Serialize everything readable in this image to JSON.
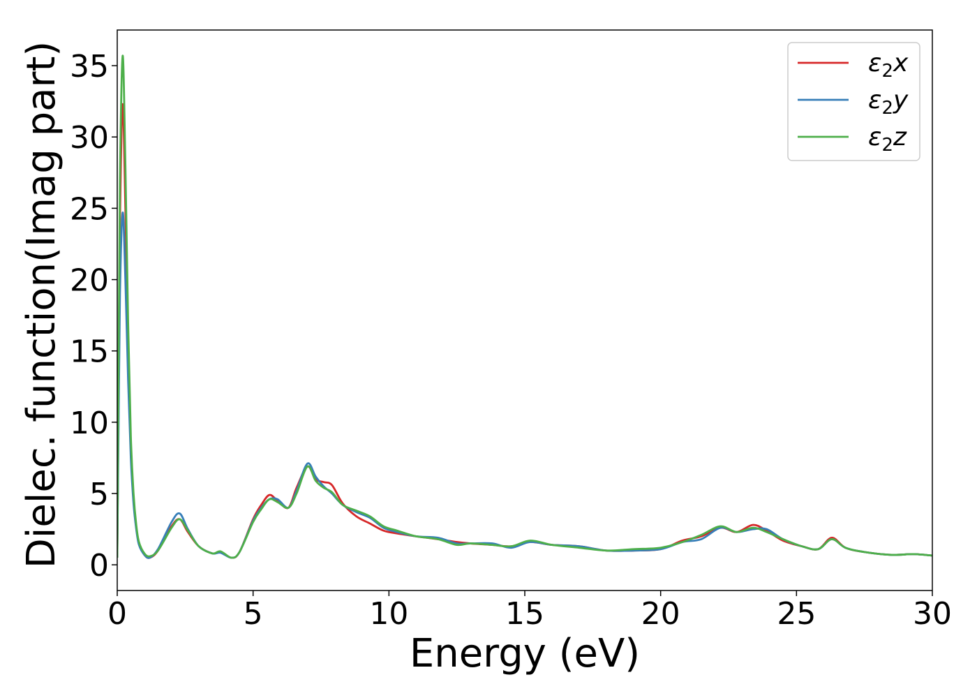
{
  "chart_data": {
    "type": "line",
    "xlabel": "Energy (eV)",
    "ylabel": "Dielec. function(Imag part)",
    "xlim": [
      0,
      30
    ],
    "ylim": [
      -1.8,
      37.5
    ],
    "xticks": [
      0,
      5,
      10,
      15,
      20,
      25,
      30
    ],
    "yticks": [
      0,
      5,
      10,
      15,
      20,
      25,
      30,
      35
    ],
    "grid": false,
    "legend_position": "top-right",
    "series": [
      {
        "name": "ε₂x",
        "legend_main": "ε",
        "legend_sub": "2",
        "legend_suffix": "x",
        "color": "#d62728",
        "x": [
          0,
          0.05,
          0.1,
          0.2,
          0.3,
          0.4,
          0.5,
          0.6,
          0.7,
          0.8,
          1.0,
          1.2,
          1.5,
          2.0,
          2.3,
          2.6,
          3.0,
          3.5,
          3.8,
          4.2,
          4.5,
          5.0,
          5.3,
          5.6,
          5.9,
          6.3,
          6.6,
          7.0,
          7.3,
          7.6,
          7.9,
          8.3,
          8.8,
          9.3,
          9.8,
          10.3,
          11.0,
          11.8,
          12.5,
          13.0,
          13.8,
          14.5,
          15.2,
          16.0,
          17.0,
          18.0,
          19.0,
          20.0,
          20.8,
          21.5,
          22.2,
          22.8,
          23.4,
          23.9,
          24.5,
          25.2,
          25.8,
          26.3,
          26.8,
          27.5,
          28.5,
          29.3,
          30.0
        ],
        "y": [
          0.5,
          12.0,
          24.0,
          32.3,
          25.0,
          15.0,
          8.0,
          4.5,
          2.6,
          1.5,
          0.7,
          0.5,
          1.0,
          2.7,
          3.2,
          2.3,
          1.3,
          0.8,
          0.9,
          0.5,
          0.9,
          3.2,
          4.2,
          4.9,
          4.5,
          4.0,
          5.4,
          6.9,
          6.0,
          5.8,
          5.6,
          4.3,
          3.4,
          2.9,
          2.4,
          2.2,
          2.0,
          1.8,
          1.6,
          1.5,
          1.4,
          1.3,
          1.6,
          1.4,
          1.3,
          1.0,
          1.0,
          1.1,
          1.7,
          2.0,
          2.6,
          2.3,
          2.8,
          2.4,
          1.7,
          1.3,
          1.1,
          1.9,
          1.2,
          0.9,
          0.7,
          0.75,
          0.65
        ]
      },
      {
        "name": "ε₂y",
        "legend_main": "ε",
        "legend_sub": "2",
        "legend_suffix": "y",
        "color": "#377eb8",
        "x": [
          0,
          0.05,
          0.1,
          0.2,
          0.3,
          0.4,
          0.5,
          0.6,
          0.7,
          0.8,
          1.0,
          1.2,
          1.5,
          2.0,
          2.3,
          2.6,
          3.0,
          3.5,
          3.8,
          4.2,
          4.5,
          5.0,
          5.3,
          5.6,
          5.9,
          6.3,
          6.6,
          7.0,
          7.3,
          7.6,
          7.9,
          8.3,
          8.8,
          9.3,
          9.8,
          10.3,
          11.0,
          11.8,
          12.5,
          13.0,
          13.8,
          14.5,
          15.2,
          16.0,
          17.0,
          18.0,
          19.0,
          20.0,
          20.8,
          21.5,
          22.2,
          22.8,
          23.4,
          23.9,
          24.5,
          25.2,
          25.8,
          26.3,
          26.8,
          27.5,
          28.5,
          29.3,
          30.0
        ],
        "y": [
          0.5,
          10.0,
          19.0,
          24.7,
          20.0,
          13.0,
          7.5,
          4.3,
          2.5,
          1.4,
          0.7,
          0.5,
          1.1,
          3.0,
          3.6,
          2.5,
          1.3,
          0.8,
          0.85,
          0.5,
          0.9,
          3.1,
          4.0,
          4.6,
          4.6,
          4.0,
          5.2,
          7.1,
          6.2,
          5.5,
          5.0,
          4.2,
          3.7,
          3.3,
          2.6,
          2.3,
          2.0,
          1.9,
          1.5,
          1.5,
          1.5,
          1.2,
          1.6,
          1.4,
          1.3,
          1.0,
          1.0,
          1.1,
          1.6,
          1.8,
          2.6,
          2.3,
          2.5,
          2.5,
          1.8,
          1.3,
          1.1,
          1.8,
          1.2,
          0.9,
          0.7,
          0.75,
          0.65
        ]
      },
      {
        "name": "ε₂z",
        "legend_main": "ε",
        "legend_sub": "2",
        "legend_suffix": "z",
        "color": "#4daf4a",
        "x": [
          0,
          0.05,
          0.1,
          0.2,
          0.3,
          0.4,
          0.5,
          0.6,
          0.7,
          0.8,
          1.0,
          1.2,
          1.5,
          2.0,
          2.3,
          2.6,
          3.0,
          3.5,
          3.8,
          4.2,
          4.5,
          5.0,
          5.3,
          5.6,
          5.9,
          6.3,
          6.6,
          7.0,
          7.3,
          7.6,
          7.9,
          8.3,
          8.8,
          9.3,
          9.8,
          10.3,
          11.0,
          11.8,
          12.5,
          13.0,
          13.8,
          14.5,
          15.2,
          16.0,
          17.0,
          18.0,
          19.0,
          20.0,
          20.8,
          21.5,
          22.2,
          22.8,
          23.4,
          23.9,
          24.5,
          25.2,
          25.8,
          26.3,
          26.8,
          27.5,
          28.5,
          29.3,
          30.0
        ],
        "y": [
          0.5,
          14.0,
          27.0,
          35.7,
          28.0,
          17.0,
          9.0,
          5.0,
          2.8,
          1.6,
          0.8,
          0.6,
          1.0,
          2.6,
          3.2,
          2.4,
          1.3,
          0.8,
          0.95,
          0.5,
          0.9,
          3.0,
          3.9,
          4.6,
          4.4,
          4.0,
          5.0,
          6.9,
          5.9,
          5.4,
          5.1,
          4.2,
          3.8,
          3.4,
          2.7,
          2.4,
          2.0,
          1.8,
          1.4,
          1.5,
          1.4,
          1.3,
          1.7,
          1.4,
          1.2,
          1.0,
          1.1,
          1.2,
          1.6,
          2.1,
          2.7,
          2.3,
          2.6,
          2.3,
          1.8,
          1.3,
          1.1,
          1.8,
          1.2,
          0.9,
          0.7,
          0.75,
          0.65
        ]
      }
    ]
  }
}
